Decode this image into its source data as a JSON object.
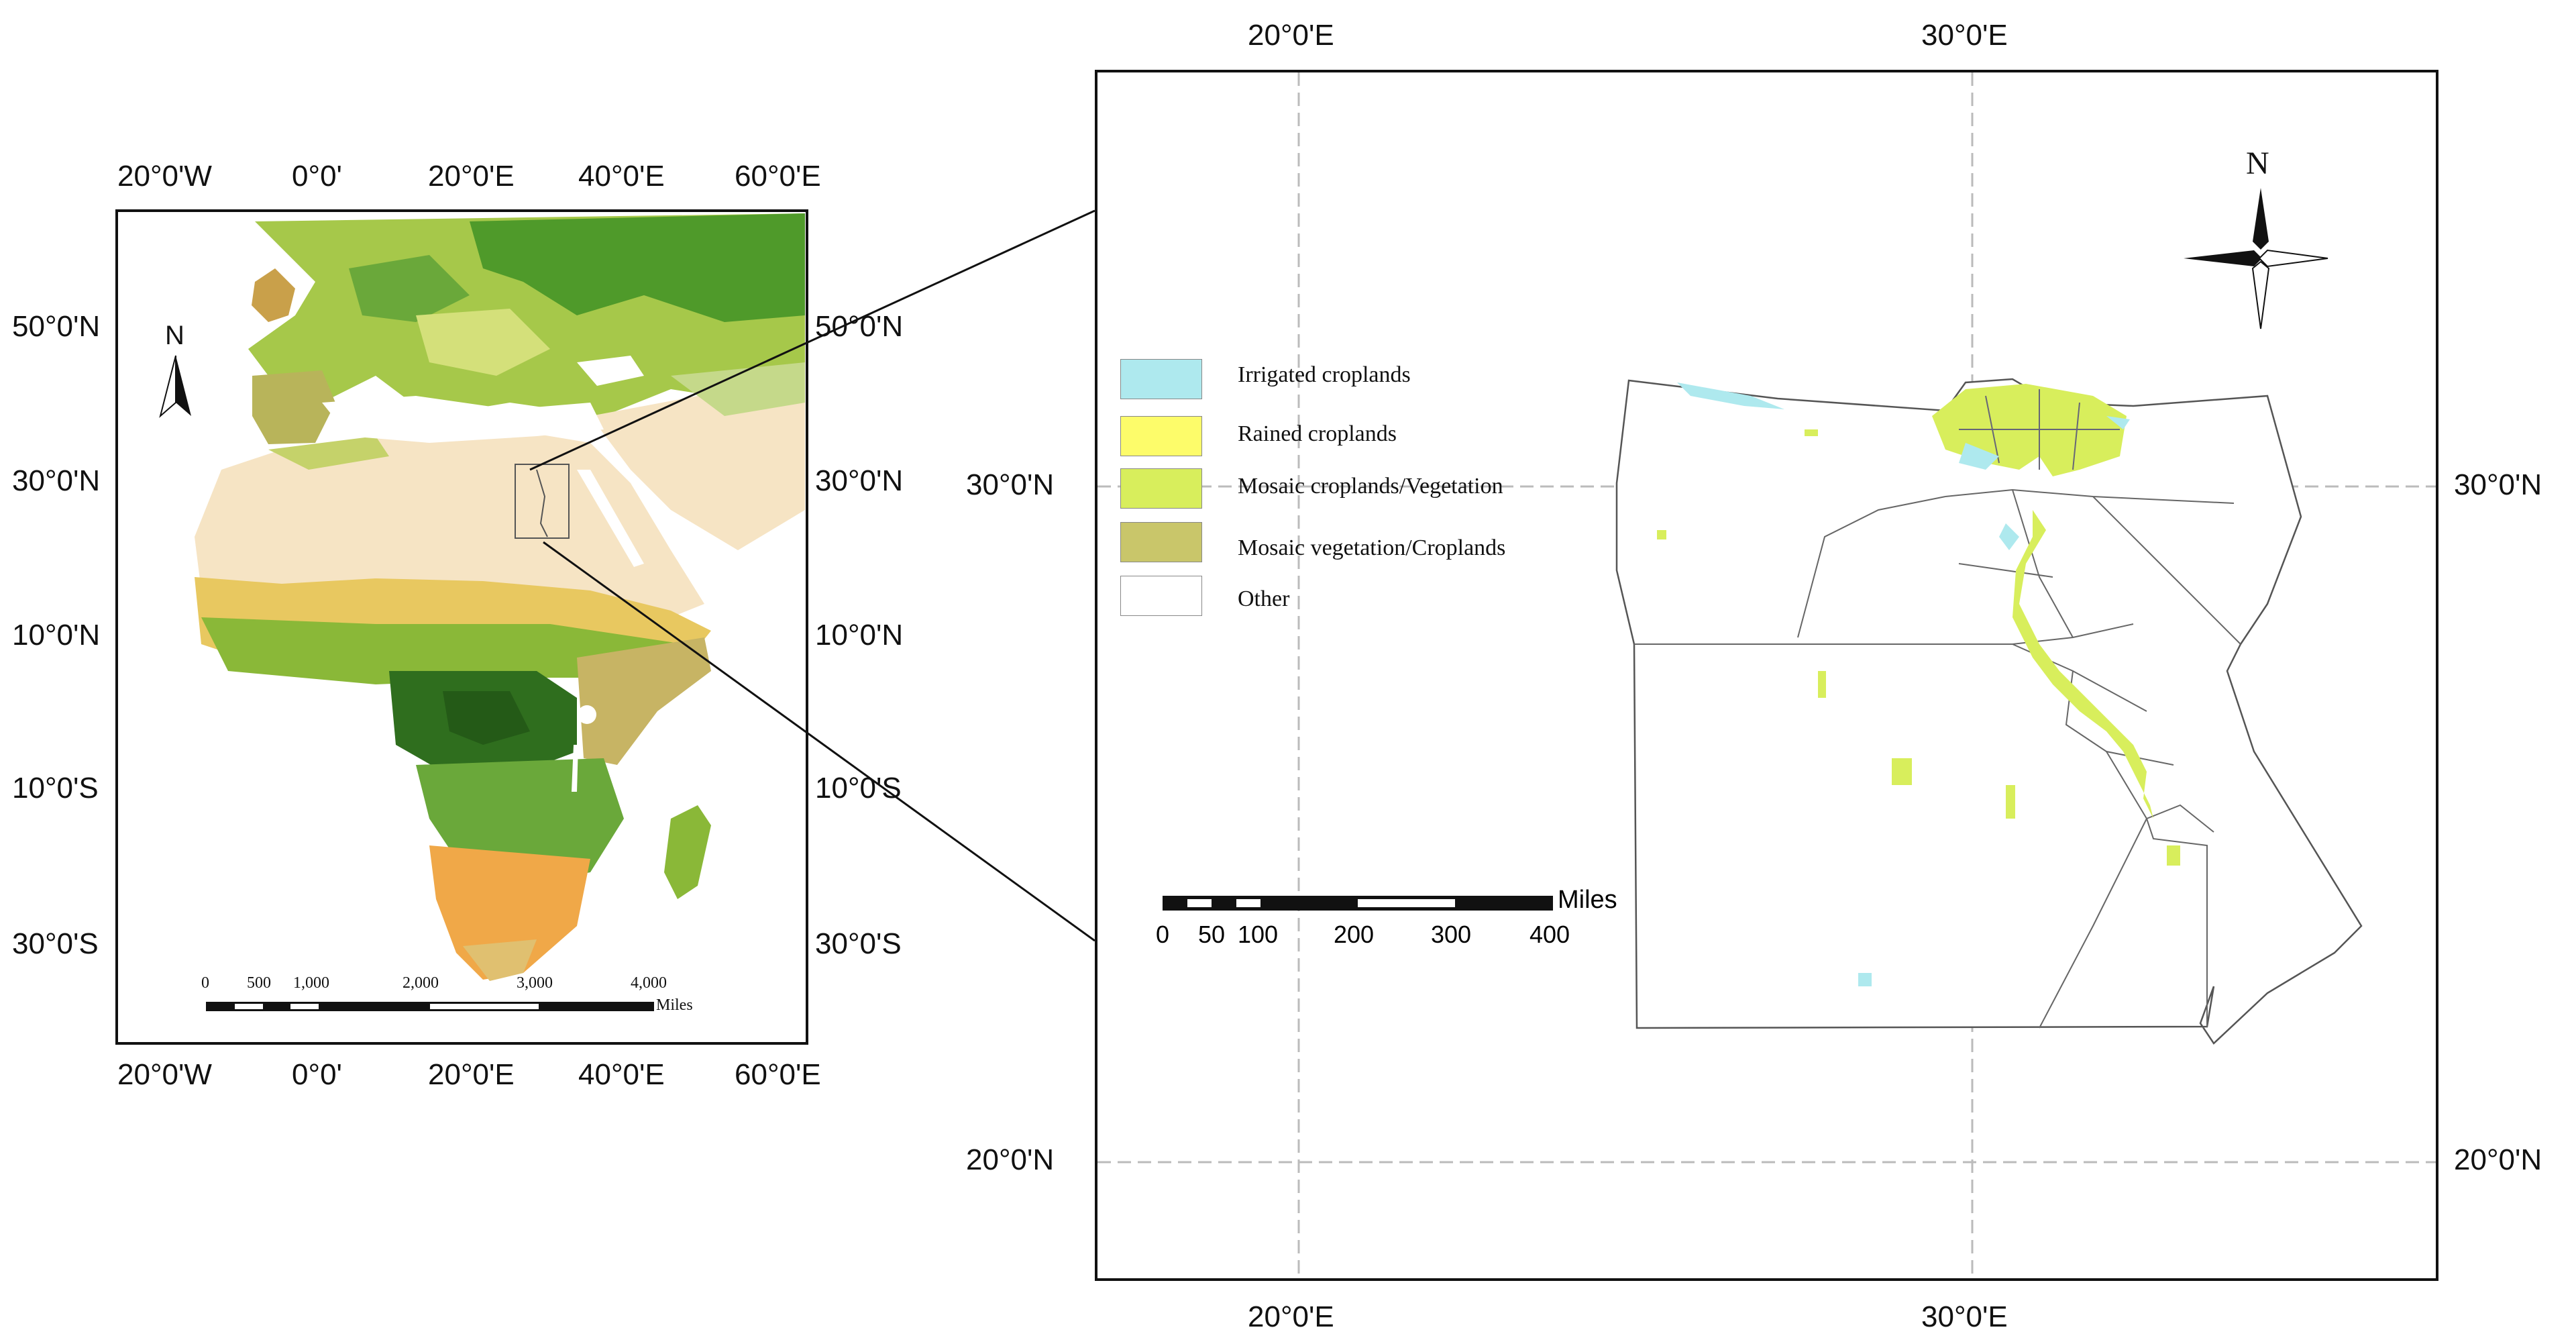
{
  "left_map": {
    "top_ticks": [
      "20°0'W",
      "0°0'",
      "20°0'E",
      "40°0'E",
      "60°0'E"
    ],
    "bottom_ticks": [
      "20°0'W",
      "0°0'",
      "20°0'E",
      "40°0'E",
      "60°0'E"
    ],
    "left_ticks": [
      "50°0'N",
      "30°0'N",
      "10°0'N",
      "10°0'S",
      "30°0'S"
    ],
    "right_ticks": [
      "50°0'N",
      "30°0'N",
      "10°0'N",
      "10°0'S",
      "30°0'S"
    ],
    "north_label": "N",
    "scale_labels": [
      "0",
      "500",
      "1,000",
      "2,000",
      "3,000",
      "4,000"
    ],
    "scale_unit": "Miles"
  },
  "right_map": {
    "top_ticks": [
      "20°0'E",
      "30°0'E"
    ],
    "bottom_ticks": [
      "20°0'E",
      "30°0'E"
    ],
    "left_ticks": [
      "30°0'N",
      "20°0'N"
    ],
    "right_ticks": [
      "30°0'N",
      "20°0'N"
    ],
    "north_label": "N",
    "scale_labels": [
      "0",
      "50",
      "100",
      "200",
      "300",
      "400"
    ],
    "scale_unit": "Miles",
    "legend": [
      {
        "label": "Irrigated croplands",
        "color": "#aee9ee"
      },
      {
        "label": "Rained croplands",
        "color": "#fdfc6a"
      },
      {
        "label": "Mosaic croplands/Vegetation",
        "color": "#d8ee5c"
      },
      {
        "label": "Mosaic vegetation/Croplands",
        "color": "#c9c66a"
      },
      {
        "label": "Other",
        "color": "#ffffff"
      }
    ]
  },
  "colors": {
    "desert": "#f6e4c4",
    "forest_dark": "#2f6e1e",
    "forest": "#4f9a2a",
    "grass": "#bcd65a",
    "savanna": "#f0a848",
    "nile_green": "#d8ee5c",
    "border": "#111111"
  }
}
